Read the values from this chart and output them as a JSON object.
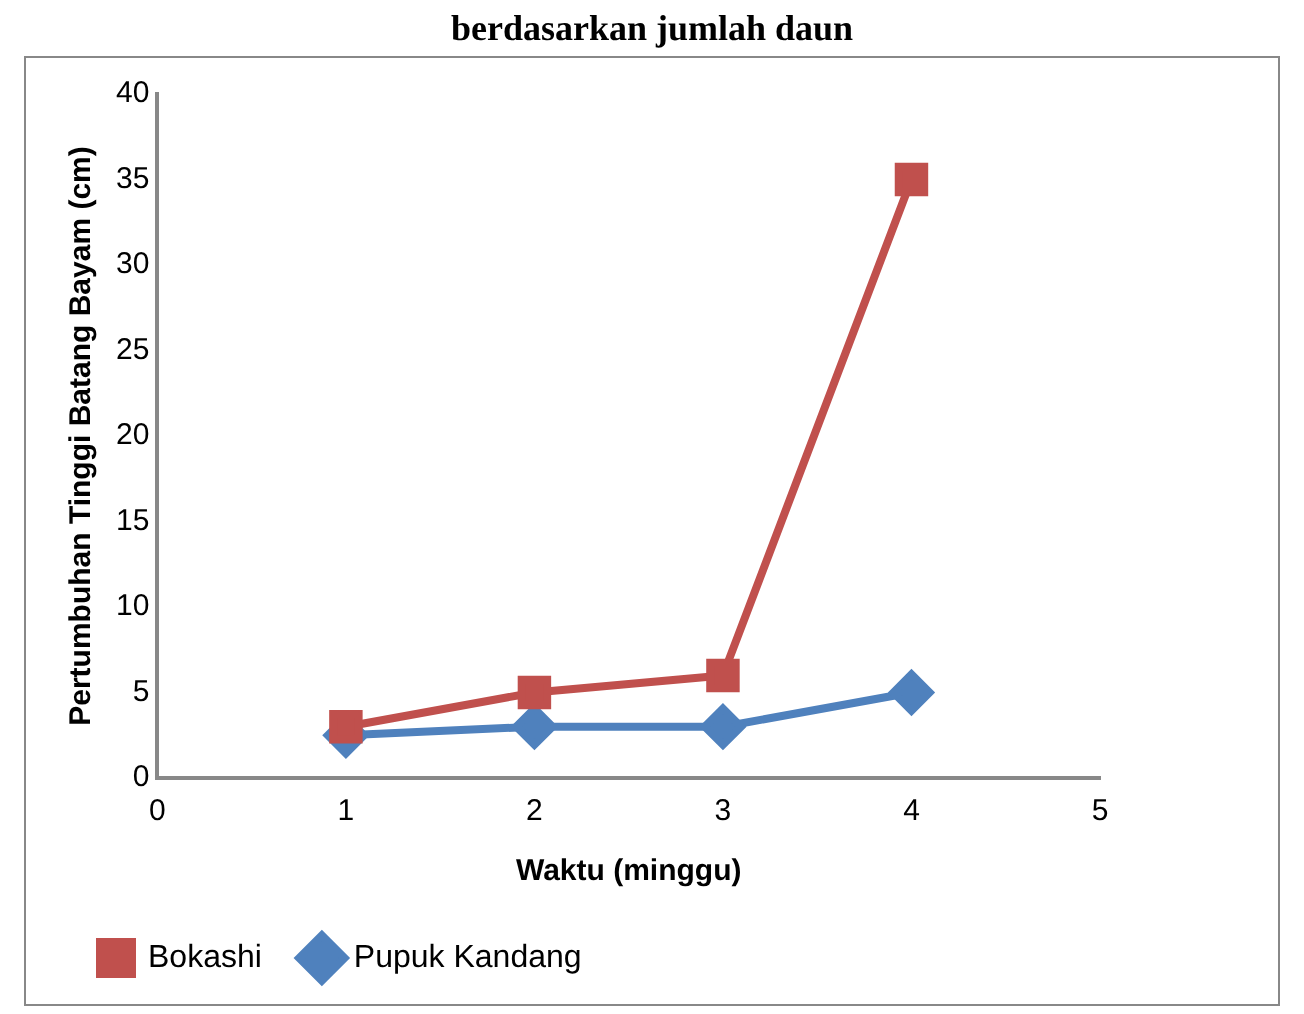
{
  "chart_data": {
    "type": "line",
    "title": "berdasarkan jumlah daun",
    "xlabel": "Waktu (minggu)",
    "ylabel": "Pertumbuhan Tinggi Batang Bayam (cm)",
    "x": [
      1,
      2,
      3,
      4
    ],
    "series": [
      {
        "name": "Pupuk Kandang",
        "color": "#4f81bd",
        "values": [
          2.5,
          3,
          3,
          5
        ],
        "marker": "diamond"
      },
      {
        "name": "Bokashi",
        "color": "#c0504d",
        "values": [
          3,
          5,
          6,
          35
        ],
        "marker": "square"
      }
    ],
    "xlim": [
      0,
      5
    ],
    "xticks": [
      0,
      1,
      2,
      3,
      4,
      5
    ],
    "ylim": [
      0,
      40
    ],
    "yticks": [
      0,
      5,
      10,
      15,
      20,
      25,
      30,
      35,
      40
    ],
    "grid": false,
    "legend": "bottom"
  }
}
